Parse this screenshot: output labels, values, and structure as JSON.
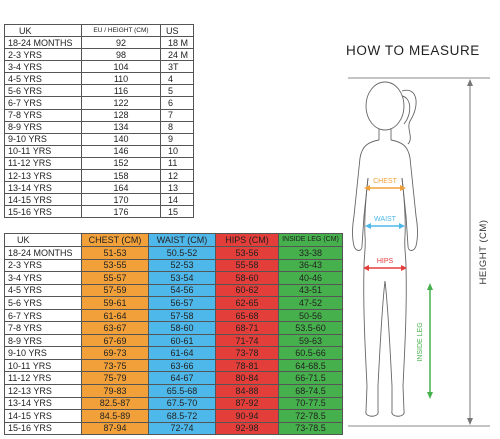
{
  "size_table": {
    "headers": [
      "UK",
      "EU / HEIGHT (CM)",
      "US"
    ],
    "rows": [
      [
        "18-24 MONTHS",
        "92",
        "18 M"
      ],
      [
        "2-3 YRS",
        "98",
        "24 M"
      ],
      [
        "3-4 YRS",
        "104",
        "3T"
      ],
      [
        "4-5 YRS",
        "110",
        "4"
      ],
      [
        "5-6 YRS",
        "116",
        "5"
      ],
      [
        "6-7 YRS",
        "122",
        "6"
      ],
      [
        "7-8 YRS",
        "128",
        "7"
      ],
      [
        "8-9 YRS",
        "134",
        "8"
      ],
      [
        "9-10 YRS",
        "140",
        "9"
      ],
      [
        "10-11 YRS",
        "146",
        "10"
      ],
      [
        "11-12 YRS",
        "152",
        "11"
      ],
      [
        "12-13 YRS",
        "158",
        "12"
      ],
      [
        "13-14 YRS",
        "164",
        "13"
      ],
      [
        "14-15 YRS",
        "170",
        "14"
      ],
      [
        "15-16 YRS",
        "176",
        "15"
      ]
    ]
  },
  "measurement_table": {
    "headers": [
      "UK",
      "CHEST (CM)",
      "WAIST (CM)",
      "HIPS (CM)",
      "INSIDE LEG (CM)"
    ],
    "rows": [
      [
        "18-24 MONTHS",
        "51-53",
        "50.5-52",
        "53-56",
        "33-38"
      ],
      [
        "2-3 YRS",
        "53-55",
        "52-53",
        "55-58",
        "36-43"
      ],
      [
        "3-4 YRS",
        "55-57",
        "53-54",
        "58-60",
        "40-46"
      ],
      [
        "4-5 YRS",
        "57-59",
        "54-56",
        "60-62",
        "43-51"
      ],
      [
        "5-6 YRS",
        "59-61",
        "56-57",
        "62-65",
        "47-52"
      ],
      [
        "6-7 YRS",
        "61-64",
        "57-58",
        "65-68",
        "50-56"
      ],
      [
        "7-8 YRS",
        "63-67",
        "58-60",
        "68-71",
        "53.5-60"
      ],
      [
        "8-9 YRS",
        "67-69",
        "60-61",
        "71-74",
        "59-63"
      ],
      [
        "9-10 YRS",
        "69-73",
        "61-64",
        "73-78",
        "60.5-66"
      ],
      [
        "10-11 YRS",
        "73-75",
        "63-66",
        "78-81",
        "64-68.5"
      ],
      [
        "11-12 YRS",
        "75-79",
        "64-67",
        "80-84",
        "66-71.5"
      ],
      [
        "12-13 YRS",
        "79-83",
        "65.5-68",
        "84-88",
        "68-74.5"
      ],
      [
        "13-14 YRS",
        "82.5-87",
        "67.5-70",
        "87-92",
        "70-77.5"
      ],
      [
        "14-15 YRS",
        "84.5-89",
        "68.5-72",
        "90-94",
        "72-78.5"
      ],
      [
        "15-16 YRS",
        "87-94",
        "72-74",
        "92-98",
        "73-78.5"
      ]
    ]
  },
  "how_to_measure": {
    "title": "HOW TO MEASURE",
    "chest_label": "CHEST",
    "waist_label": "WAIST",
    "hips_label": "HIPS",
    "inside_leg_label": "INSIDE LEG",
    "height_label": "HEIGHT (CM)"
  },
  "colors": {
    "chest": "#f2a13a",
    "waist": "#4fb8ea",
    "hips": "#e33e3a",
    "inside_leg": "#46b14c"
  },
  "icons": [
    "girl-silhouette-icon",
    "chest-arrow-icon",
    "waist-arrow-icon",
    "hips-arrow-icon",
    "inside-leg-arrow-icon",
    "height-arrow-icon"
  ]
}
